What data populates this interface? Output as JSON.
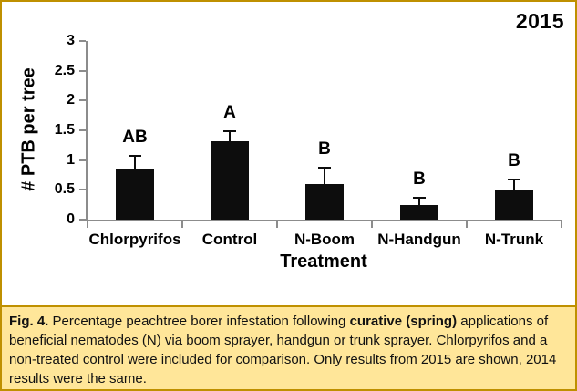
{
  "chart": {
    "year_label": "2015"
  },
  "chart_data": {
    "type": "bar",
    "title": "2015",
    "categories": [
      "Chlorpyrifos",
      "Control",
      "N-Boom",
      "N-Handgun",
      "N-Trunk"
    ],
    "values": [
      0.85,
      1.32,
      0.59,
      0.24,
      0.5
    ],
    "error_upper": [
      0.22,
      0.17,
      0.28,
      0.12,
      0.17
    ],
    "sig_letters": [
      "AB",
      "A",
      "B",
      "B",
      "B"
    ],
    "xlabel": "Treatment",
    "ylabel": "# PTB per tree",
    "ylim": [
      0,
      3
    ],
    "yticks": [
      0,
      0.5,
      1,
      1.5,
      2,
      2.5,
      3
    ],
    "grid": false,
    "legend": "none",
    "bar_color": "#0d0d0d",
    "axis_color": "#8c8c8c"
  },
  "caption": {
    "fig_label": "Fig. 4.",
    "text_1": " Percentage peachtree borer infestation following ",
    "bold_phrase": "curative (spring)",
    "text_2": " applications of beneficial nematodes (N) via boom sprayer, handgun or trunk sprayer. Chlorpyrifos and a non-treated control were included for comparison. Only results from 2015 are shown, 2014 results were the same."
  },
  "colors": {
    "caption_bg": "#FFE699",
    "frame_border": "#BF9000",
    "chart_bg": "#FFFFFF"
  }
}
